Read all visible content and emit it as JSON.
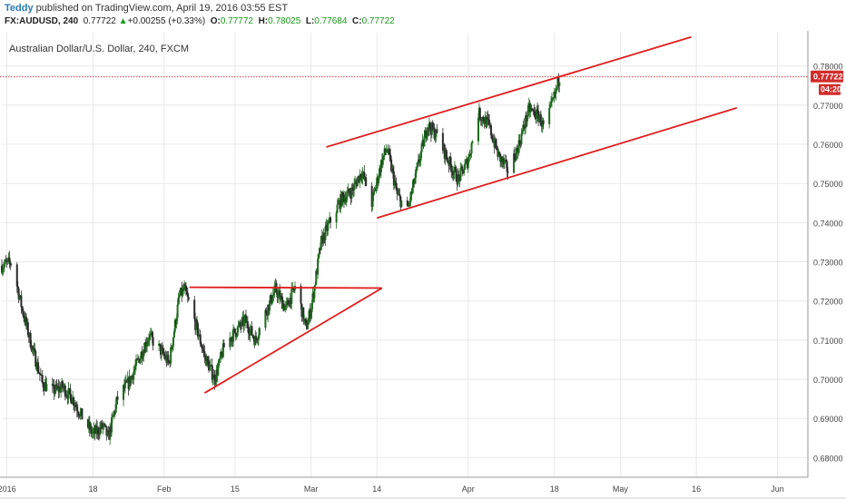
{
  "header": {
    "author": "Teddy",
    "published": "published on TradingView.com, April 19, 2016 03:55 EST",
    "symbol": "FX:AUDUSD, 240",
    "last": "0.77722",
    "change_arrow": "▲",
    "change": "+0.00255 (+0.33%)",
    "o_label": "O:",
    "o": "0.77772",
    "h_label": "H:",
    "h": "0.78025",
    "l_label": "L:",
    "l": "0.77684",
    "c_label": "C:",
    "c": "0.77722"
  },
  "colors": {
    "up_candle": "#1d6b1d",
    "down_candle": "#2b2b2b",
    "trend_line": "#e01e1e",
    "price_tag_bg": "#d42b2b",
    "grid": "#e8e8e8"
  },
  "chart_data": {
    "type": "candlestick",
    "title": "Australian Dollar/U.S. Dollar, 240, FXCM",
    "ylim": [
      0.675,
      0.7885
    ],
    "x_date_range": [
      "2015-12-31",
      "2016-06-07"
    ],
    "y_ticks": [
      "0.78000",
      "0.77000",
      "0.76000",
      "0.75000",
      "0.74000",
      "0.73000",
      "0.72000",
      "0.71000",
      "0.70000",
      "0.69000",
      "0.68000"
    ],
    "x_ticks": [
      {
        "date": "2016-01-01",
        "label": "2016"
      },
      {
        "date": "2016-01-18",
        "label": "18"
      },
      {
        "date": "2016-02-01",
        "label": "Feb"
      },
      {
        "date": "2016-02-15",
        "label": "15"
      },
      {
        "date": "2016-03-01",
        "label": "Mar"
      },
      {
        "date": "2016-03-14",
        "label": "14"
      },
      {
        "date": "2016-04-01",
        "label": "Apr"
      },
      {
        "date": "2016-04-18",
        "label": "18"
      },
      {
        "date": "2016-05-01",
        "label": "May"
      },
      {
        "date": "2016-05-16",
        "label": "16"
      },
      {
        "date": "2016-06-01",
        "label": "Jun"
      }
    ],
    "current_price": 0.77722,
    "current_price_label": "0.77722",
    "countdown_label": "04:20",
    "close_path": [
      [
        "2015-12-31",
        0.729
      ],
      [
        "2016-01-02",
        0.73
      ],
      [
        "2016-01-04",
        0.718
      ],
      [
        "2016-01-06",
        0.708
      ],
      [
        "2016-01-08",
        0.699
      ],
      [
        "2016-01-10",
        0.697
      ],
      [
        "2016-01-12",
        0.698
      ],
      [
        "2016-01-14",
        0.695
      ],
      [
        "2016-01-16",
        0.69
      ],
      [
        "2016-01-18",
        0.686
      ],
      [
        "2016-01-20",
        0.688
      ],
      [
        "2016-01-21",
        0.685
      ],
      [
        "2016-01-23",
        0.696
      ],
      [
        "2016-01-25",
        0.699
      ],
      [
        "2016-01-27",
        0.705
      ],
      [
        "2016-01-29",
        0.711
      ],
      [
        "2016-01-31",
        0.708
      ],
      [
        "2016-02-02",
        0.704
      ],
      [
        "2016-02-04",
        0.721
      ],
      [
        "2016-02-05",
        0.723
      ],
      [
        "2016-02-07",
        0.715
      ],
      [
        "2016-02-09",
        0.706
      ],
      [
        "2016-02-11",
        0.7
      ],
      [
        "2016-02-13",
        0.709
      ],
      [
        "2016-02-15",
        0.712
      ],
      [
        "2016-02-17",
        0.715
      ],
      [
        "2016-02-19",
        0.71
      ],
      [
        "2016-02-21",
        0.717
      ],
      [
        "2016-02-23",
        0.723
      ],
      [
        "2016-02-25",
        0.718
      ],
      [
        "2016-02-27",
        0.724
      ],
      [
        "2016-02-29",
        0.713
      ],
      [
        "2016-03-01",
        0.718
      ],
      [
        "2016-03-03",
        0.735
      ],
      [
        "2016-03-05",
        0.741
      ],
      [
        "2016-03-07",
        0.746
      ],
      [
        "2016-03-09",
        0.748
      ],
      [
        "2016-03-11",
        0.753
      ],
      [
        "2016-03-13",
        0.745
      ],
      [
        "2016-03-15",
        0.756
      ],
      [
        "2016-03-16",
        0.759
      ],
      [
        "2016-03-18",
        0.747
      ],
      [
        "2016-03-20",
        0.743
      ],
      [
        "2016-03-22",
        0.754
      ],
      [
        "2016-03-24",
        0.765
      ],
      [
        "2016-03-26",
        0.762
      ],
      [
        "2016-03-28",
        0.756
      ],
      [
        "2016-03-30",
        0.751
      ],
      [
        "2016-04-01",
        0.756
      ],
      [
        "2016-04-03",
        0.768
      ],
      [
        "2016-04-05",
        0.765
      ],
      [
        "2016-04-07",
        0.757
      ],
      [
        "2016-04-09",
        0.753
      ],
      [
        "2016-04-11",
        0.76
      ],
      [
        "2016-04-13",
        0.769
      ],
      [
        "2016-04-15",
        0.767
      ],
      [
        "2016-04-16",
        0.764
      ],
      [
        "2016-04-18",
        0.772
      ],
      [
        "2016-04-19",
        0.7772
      ]
    ],
    "drawings": [
      {
        "name": "channel-upper-line",
        "from": [
          "2016-03-04",
          0.7593
        ],
        "to": [
          "2016-05-15",
          0.7874
        ]
      },
      {
        "name": "channel-lower-line",
        "from": [
          "2016-03-14",
          0.7412
        ],
        "to": [
          "2016-05-24",
          0.7693
        ]
      },
      {
        "name": "triangle-top-line",
        "from": [
          "2016-02-06",
          0.7235
        ],
        "to": [
          "2016-03-15",
          0.7233
        ]
      },
      {
        "name": "triangle-bottom-line",
        "from": [
          "2016-02-09",
          0.6965
        ],
        "to": [
          "2016-03-15",
          0.7233
        ]
      }
    ]
  }
}
